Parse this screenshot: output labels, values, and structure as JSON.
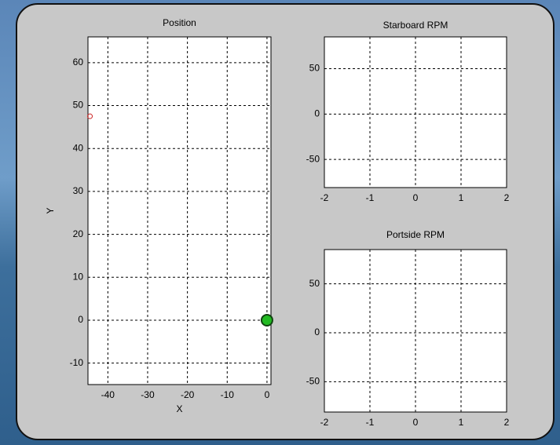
{
  "chart_data": [
    {
      "type": "scatter",
      "title": "Position",
      "x_label": "X",
      "y_label": "Y",
      "xlim": [
        -45,
        1
      ],
      "xticks": [
        -40,
        -30,
        -20,
        -10,
        0
      ],
      "ylim": [
        -15,
        66
      ],
      "yticks": [
        -10,
        0,
        10,
        20,
        30,
        40,
        50,
        60
      ],
      "grid": true,
      "series": [
        {
          "color": "#cc2222",
          "x": [
            -44.5
          ],
          "values": [
            47.5
          ]
        },
        {
          "color": "#22bb22",
          "x": [
            0
          ],
          "values": [
            0
          ]
        }
      ]
    },
    {
      "type": "line",
      "title": "Starboard RPM",
      "xlim": [
        -2,
        2
      ],
      "xticks": [
        -2,
        -1,
        0,
        1,
        2
      ],
      "ylim": [
        -81,
        85
      ],
      "yticks": [
        -50,
        0,
        50
      ],
      "grid": true
    },
    {
      "type": "line",
      "title": "Portside RPM",
      "xlim": [
        -2,
        2
      ],
      "xticks": [
        -2,
        -1,
        0,
        1,
        2
      ],
      "ylim": [
        -81,
        85
      ],
      "yticks": [
        -50,
        0,
        50
      ],
      "grid": true
    }
  ]
}
